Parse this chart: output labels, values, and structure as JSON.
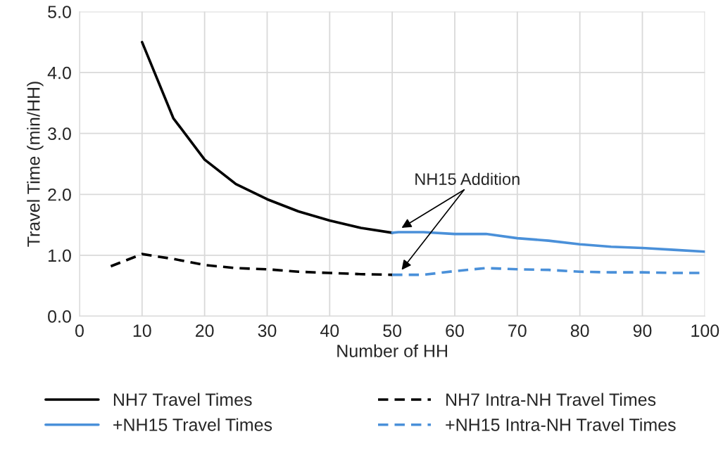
{
  "chart_data": {
    "type": "line",
    "xlabel": "Number of HH",
    "ylabel": "Travel Time (min/HH)",
    "xlim": [
      0,
      100
    ],
    "xticks": [
      0,
      10,
      20,
      30,
      40,
      50,
      60,
      70,
      80,
      90,
      100
    ],
    "ylim": [
      0,
      5
    ],
    "yticks": [
      {
        "value": 0,
        "label": "0.0"
      },
      {
        "value": 1,
        "label": "1.0"
      },
      {
        "value": 2,
        "label": "2.0"
      },
      {
        "value": 3,
        "label": "3.0"
      },
      {
        "value": 4,
        "label": "4.0"
      },
      {
        "value": 5,
        "label": "5.0"
      }
    ],
    "grid": true,
    "legend": "bottom",
    "series": [
      {
        "name": "NH7 Travel Times",
        "color": "#000000",
        "line_style": "solid",
        "x": [
          10,
          15,
          20,
          25,
          30,
          35,
          40,
          45,
          50
        ],
        "values": [
          4.5,
          3.25,
          2.57,
          2.17,
          1.92,
          1.72,
          1.57,
          1.45,
          1.37
        ]
      },
      {
        "name": "NH7 Intra-NH Travel Times",
        "color": "#000000",
        "line_style": "dashed",
        "x": [
          5,
          10,
          15,
          20,
          25,
          30,
          35,
          40,
          45,
          50
        ],
        "values": [
          0.82,
          1.02,
          0.94,
          0.84,
          0.79,
          0.77,
          0.73,
          0.71,
          0.69,
          0.68
        ]
      },
      {
        "name": "+NH15 Travel Times",
        "color": "#4a90d9",
        "line_style": "solid",
        "x": [
          50,
          51,
          55,
          60,
          65,
          70,
          75,
          80,
          85,
          90,
          95,
          100
        ],
        "values": [
          1.37,
          1.38,
          1.38,
          1.35,
          1.35,
          1.28,
          1.24,
          1.18,
          1.14,
          1.12,
          1.09,
          1.06
        ]
      },
      {
        "name": "+NH15 Intra-NH Travel Times",
        "color": "#4a90d9",
        "line_style": "dashed",
        "x": [
          50,
          55,
          60,
          65,
          70,
          75,
          80,
          85,
          90,
          95,
          100
        ],
        "values": [
          0.68,
          0.68,
          0.74,
          0.79,
          0.77,
          0.76,
          0.73,
          0.72,
          0.72,
          0.71,
          0.71
        ]
      }
    ],
    "annotations": [
      "NH15 Addition"
    ]
  }
}
